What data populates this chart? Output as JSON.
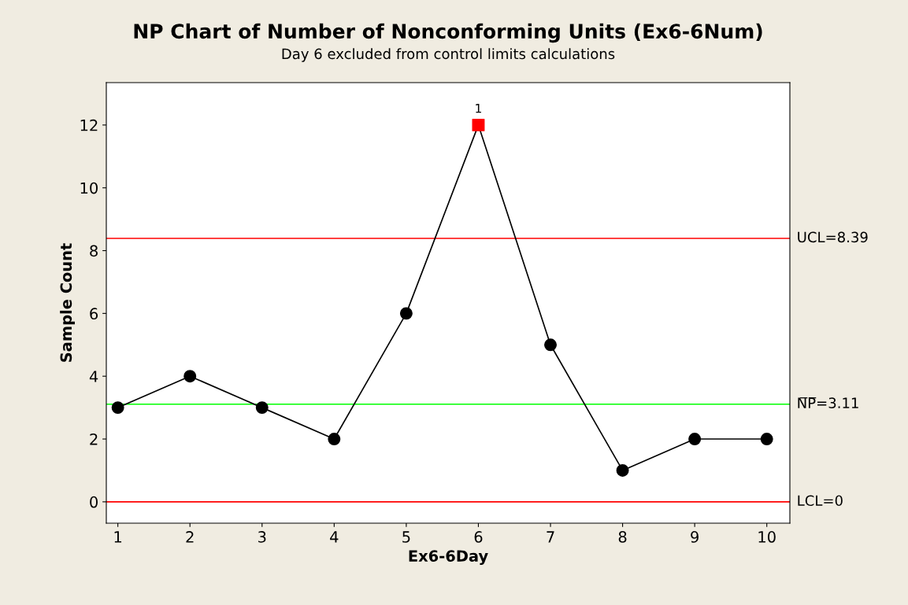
{
  "chart_data": {
    "type": "line",
    "title": "NP Chart of Number of Nonconforming Units (Ex6-6Num)",
    "subtitle": "Day 6 excluded from control limits calculations",
    "xlabel": "Ex6-6Day",
    "ylabel": "Sample Count",
    "x": [
      1,
      2,
      3,
      4,
      5,
      6,
      7,
      8,
      9,
      10
    ],
    "series": [
      {
        "color": "#000000",
        "marker": "none",
        "values": [
          3,
          4,
          3,
          2,
          6,
          12,
          5,
          1,
          2,
          2
        ]
      },
      {
        "type": "scatter",
        "color": "#000000",
        "marker": "circle",
        "values": [
          3,
          4,
          3,
          2,
          6,
          null,
          5,
          1,
          2,
          2
        ]
      },
      {
        "type": "scatter",
        "color": "#ff0000",
        "marker": "square",
        "values": [
          null,
          null,
          null,
          null,
          null,
          12,
          null,
          null,
          null,
          null
        ]
      }
    ],
    "xlim": [
      0.84,
      10.32
    ],
    "xticks": [
      1,
      2,
      3,
      4,
      5,
      6,
      7,
      8,
      9,
      10
    ],
    "ylim": [
      -0.68,
      13.35
    ],
    "yticks": [
      0,
      2,
      4,
      6,
      8,
      10,
      12
    ],
    "ref_lines": [
      {
        "axis": "y",
        "value": 8.39,
        "label": "UCL=8.39",
        "color": "#ff0000"
      },
      {
        "axis": "y",
        "value": 3.11,
        "label": "N̅P̅=3.11",
        "color": "#00ff00"
      },
      {
        "axis": "y",
        "value": 0,
        "label": "LCL=0",
        "color": "#ff0000"
      }
    ],
    "annotations": [
      {
        "text": "1",
        "x": 6,
        "y": 12
      }
    ],
    "grid": false,
    "legend": false
  }
}
